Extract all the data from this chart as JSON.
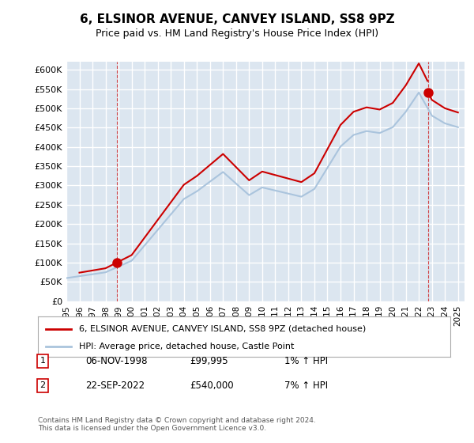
{
  "title": "6, ELSINOR AVENUE, CANVEY ISLAND, SS8 9PZ",
  "subtitle": "Price paid vs. HM Land Registry's House Price Index (HPI)",
  "ylabel_ticks": [
    "£0",
    "£50K",
    "£100K",
    "£150K",
    "£200K",
    "£250K",
    "£300K",
    "£350K",
    "£400K",
    "£450K",
    "£500K",
    "£550K",
    "£600K"
  ],
  "ylim": [
    0,
    620000
  ],
  "ytick_values": [
    0,
    50000,
    100000,
    150000,
    200000,
    250000,
    300000,
    350000,
    400000,
    450000,
    500000,
    550000,
    600000
  ],
  "xlim_start": 1995.0,
  "xlim_end": 2025.5,
  "x_tick_years": [
    1995,
    1996,
    1997,
    1998,
    1999,
    2000,
    2001,
    2002,
    2003,
    2004,
    2005,
    2006,
    2007,
    2008,
    2009,
    2010,
    2011,
    2012,
    2013,
    2014,
    2015,
    2016,
    2017,
    2018,
    2019,
    2020,
    2021,
    2022,
    2023,
    2024,
    2025
  ],
  "hpi_color": "#aac4dd",
  "price_color": "#cc0000",
  "bg_color": "#dce6f0",
  "grid_color": "#ffffff",
  "transaction1": {
    "date": "06-NOV-1998",
    "year": 1998.85,
    "price": 99995,
    "label": "1"
  },
  "transaction2": {
    "date": "22-SEP-2022",
    "year": 2022.72,
    "price": 540000,
    "label": "2"
  },
  "legend_red_label": "6, ELSINOR AVENUE, CANVEY ISLAND, SS8 9PZ (detached house)",
  "legend_blue_label": "HPI: Average price, detached house, Castle Point",
  "table_rows": [
    {
      "num": "1",
      "date": "06-NOV-1998",
      "price": "£99,995",
      "hpi": "1% ↑ HPI"
    },
    {
      "num": "2",
      "date": "22-SEP-2022",
      "price": "£540,000",
      "hpi": "7% ↑ HPI"
    }
  ],
  "footnote": "Contains HM Land Registry data © Crown copyright and database right 2024.\nThis data is licensed under the Open Government Licence v3.0."
}
